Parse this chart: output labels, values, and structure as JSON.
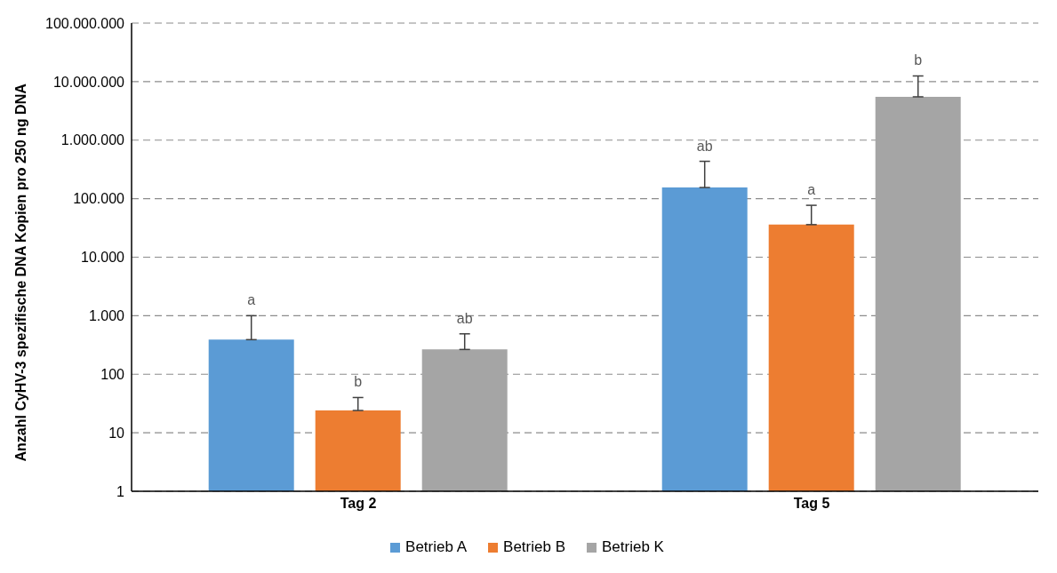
{
  "chart_data": {
    "type": "bar",
    "ylabel": "Anzahl CyHV-3 spezifische DNA Kopien pro 250 ng DNA",
    "categories": [
      "Tag 2",
      "Tag 5"
    ],
    "series": [
      {
        "name": "Betrieb A",
        "color": "#5b9bd5",
        "values": [
          390,
          155000
        ],
        "errors": [
          [
            390,
            1000
          ],
          [
            155000,
            435000
          ]
        ]
      },
      {
        "name": "Betrieb B",
        "color": "#ed7d31",
        "values": [
          24,
          36000
        ],
        "errors": [
          [
            24,
            40
          ],
          [
            36000,
            77000
          ]
        ]
      },
      {
        "name": "Betrieb K",
        "color": "#a5a5a5",
        "values": [
          265,
          5500000
        ],
        "errors": [
          [
            265,
            490
          ],
          [
            5500000,
            12500000
          ]
        ]
      }
    ],
    "log": true,
    "ylim": [
      1,
      100000000
    ],
    "yticks": [
      1,
      10,
      100,
      {
        "value": 1000,
        "label": "1.000"
      },
      {
        "value": 10000,
        "label": "10.000"
      },
      {
        "value": 100000,
        "label": "100.000"
      },
      {
        "value": 1000000,
        "label": "1.000.000"
      },
      {
        "value": 10000000,
        "label": "10.000.000"
      },
      {
        "value": 100000000,
        "label": "100.000.000"
      }
    ],
    "grid": "y",
    "legend": "bottom",
    "annotations": [
      "a",
      "b",
      "ab",
      "ab",
      "a",
      "b"
    ]
  }
}
